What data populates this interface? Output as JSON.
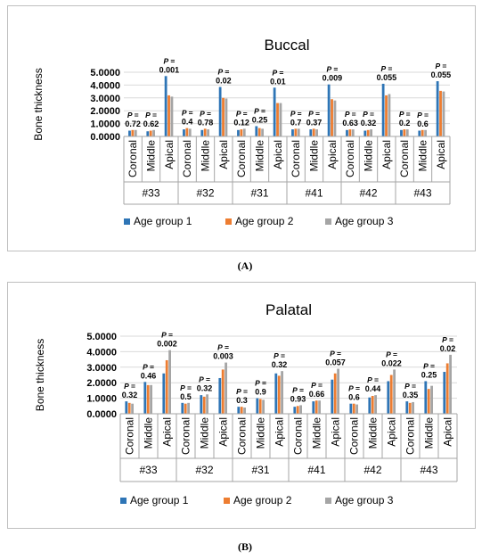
{
  "chart_data": [
    {
      "type": "bar",
      "title": "Buccal",
      "ylabel": "Bone thickness",
      "ylim": [
        0,
        5
      ],
      "yticks": [
        "0.0000",
        "1.0000",
        "2.0000",
        "3.0000",
        "4.0000",
        "5.0000"
      ],
      "grid": true,
      "legend_position": "bottom",
      "teeth": [
        "#33",
        "#32",
        "#31",
        "#41",
        "#42",
        "#43"
      ],
      "regions": [
        "Coronal",
        "Middle",
        "Apical"
      ],
      "series": [
        {
          "name": "Age group 1",
          "values": [
            0.45,
            0.4,
            4.7,
            0.55,
            0.5,
            3.85,
            0.5,
            0.8,
            3.8,
            0.55,
            0.55,
            4.05,
            0.5,
            0.45,
            4.1,
            0.5,
            0.45,
            4.3
          ]
        },
        {
          "name": "Age group 2",
          "values": [
            0.5,
            0.45,
            3.2,
            0.65,
            0.6,
            3.0,
            0.55,
            0.65,
            2.6,
            0.6,
            0.6,
            2.9,
            0.55,
            0.5,
            3.2,
            0.55,
            0.5,
            3.55
          ]
        },
        {
          "name": "Age group 3",
          "values": [
            0.5,
            0.5,
            3.1,
            0.6,
            0.55,
            2.95,
            0.6,
            0.6,
            2.6,
            0.6,
            0.55,
            2.8,
            0.55,
            0.55,
            3.3,
            0.55,
            0.5,
            3.5
          ]
        }
      ],
      "p_values": [
        [
          "0.72",
          "0.62",
          "0.001"
        ],
        [
          "0.4",
          "0.78",
          "0.02"
        ],
        [
          "0.12",
          "0.25",
          "0.01"
        ],
        [
          "0.7",
          "0.37",
          "0.009"
        ],
        [
          "0.63",
          "0.32",
          "0.055"
        ],
        [
          "0.2",
          "0.6",
          "0.055"
        ]
      ]
    },
    {
      "type": "bar",
      "title": "Palatal",
      "ylabel": "Bone thickness",
      "ylim": [
        0,
        5
      ],
      "yticks": [
        "0.0000",
        "1.0000",
        "2.0000",
        "3.0000",
        "4.0000",
        "5.0000"
      ],
      "grid": true,
      "legend_position": "bottom",
      "teeth": [
        "#33",
        "#32",
        "#31",
        "#41",
        "#42",
        "#43"
      ],
      "regions": [
        "Coronal",
        "Middle",
        "Apical"
      ],
      "series": [
        {
          "name": "Age group 1",
          "values": [
            0.8,
            2.05,
            2.6,
            0.7,
            1.2,
            2.3,
            0.45,
            1.0,
            2.6,
            0.45,
            0.8,
            2.2,
            0.65,
            1.05,
            2.1,
            0.8,
            2.1,
            2.7
          ]
        },
        {
          "name": "Age group 2",
          "values": [
            0.7,
            1.85,
            3.45,
            0.65,
            1.1,
            2.85,
            0.45,
            0.95,
            2.45,
            0.5,
            0.85,
            2.6,
            0.65,
            1.15,
            2.5,
            0.7,
            1.6,
            3.25
          ]
        },
        {
          "name": "Age group 3",
          "values": [
            0.65,
            1.85,
            4.1,
            0.7,
            1.25,
            3.3,
            0.4,
            0.9,
            2.75,
            0.55,
            0.85,
            2.9,
            0.6,
            1.2,
            2.85,
            0.75,
            1.8,
            3.8
          ]
        }
      ],
      "p_values": [
        [
          "0.32",
          "0.46",
          "0.002"
        ],
        [
          "0.5",
          "0.32",
          "0.003"
        ],
        [
          "0.3",
          "0.9",
          "0.32"
        ],
        [
          "0.93",
          "0.66",
          "0.057"
        ],
        [
          "0.6",
          "0.44",
          "0.022"
        ],
        [
          "0.35",
          "0.25",
          "0.02"
        ]
      ]
    }
  ],
  "p_prefix": "P =",
  "colors": {
    "series": [
      "#2e75b6",
      "#ed7d31",
      "#a5a5a5"
    ],
    "grid": "#d9d9d9",
    "axis": "#a6a6a6"
  },
  "captions": {
    "a": "(A)",
    "b": "(B)"
  }
}
